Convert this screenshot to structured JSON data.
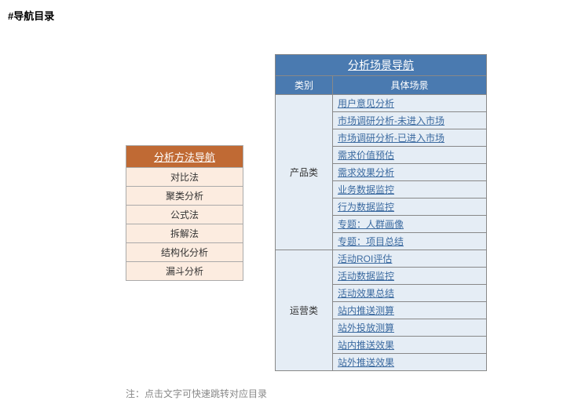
{
  "heading": "#导航目录",
  "methods": {
    "title": "分析方法导航",
    "header_bg": "#c06a34",
    "header_fg": "#ffffff",
    "row_bg": "#fcece0",
    "border_color": "#aaaaaa",
    "items": [
      "对比法",
      "聚类分析",
      "公式法",
      "拆解法",
      "结构化分析",
      "漏斗分析"
    ]
  },
  "scenes": {
    "title": "分析场景导航",
    "col1": "类别",
    "col2": "具体场景",
    "header_bg": "#4a7ab0",
    "header_fg": "#ffffff",
    "row_bg": "#e5edf5",
    "link_color": "#3b6aa0",
    "groups": [
      {
        "category": "产品类",
        "items": [
          "用户意见分析",
          "市场调研分析-未进入市场",
          "市场调研分析-已进入市场",
          "需求价值预估",
          "需求效果分析",
          "业务数据监控",
          "行为数据监控",
          "专题：人群画像",
          "专题：项目总结"
        ]
      },
      {
        "category": "运营类",
        "items": [
          "活动ROI评估",
          "活动数据监控",
          "活动效果总结",
          "站内推送测算",
          "站外投放测算",
          "站内推送效果",
          "站外推送效果"
        ]
      }
    ]
  },
  "note": "注：点击文字可快速跳转对应目录"
}
